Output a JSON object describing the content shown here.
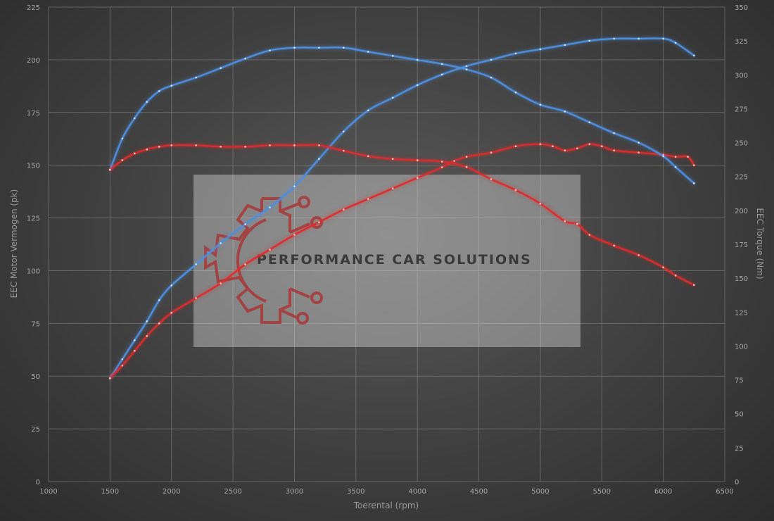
{
  "chart_data": {
    "type": "line",
    "xlabel": "Toerental (rpm)",
    "ylabel": "EEC Motor Vermogen (pk)",
    "y2label": "EEC Torque (Nm)",
    "xlim": [
      1000,
      6500
    ],
    "ylim": [
      0,
      225
    ],
    "y2lim": [
      0,
      350
    ],
    "xticks": [
      1000,
      1500,
      2000,
      2500,
      3000,
      3500,
      4000,
      4500,
      5000,
      5500,
      6000,
      6500
    ],
    "yticks": [
      0,
      25,
      50,
      75,
      100,
      125,
      150,
      175,
      200,
      225
    ],
    "y2ticks": [
      0,
      25,
      50,
      75,
      100,
      125,
      150,
      175,
      200,
      225,
      250,
      275,
      300,
      325,
      350
    ],
    "grid": true,
    "series": [
      {
        "axis": "left",
        "color": "#4d8fe0",
        "x": [
          1500,
          1600,
          1700,
          1800,
          1900,
          2000,
          2200,
          2400,
          2600,
          2800,
          3000,
          3200,
          3400,
          3600,
          3800,
          4000,
          4200,
          4400,
          4600,
          4800,
          5000,
          5200,
          5400,
          5600,
          5800,
          6000,
          6100,
          6250
        ],
        "y": [
          49,
          58,
          67,
          76,
          86,
          93,
          103,
          113,
          122,
          130,
          140,
          153,
          166,
          176,
          182,
          188,
          193,
          197,
          200,
          203,
          205,
          207,
          209,
          210,
          210,
          210,
          208,
          202
        ]
      },
      {
        "axis": "left",
        "color": "#e02a2a",
        "x": [
          1500,
          1600,
          1700,
          1800,
          1900,
          2000,
          2200,
          2400,
          2600,
          2800,
          3000,
          3200,
          3400,
          3600,
          3800,
          4000,
          4200,
          4300,
          4400,
          4600,
          4800,
          5000,
          5100,
          5200,
          5300,
          5400,
          5500,
          5600,
          5800,
          6000,
          6100,
          6200,
          6250
        ],
        "y": [
          49,
          55,
          62,
          69,
          75,
          80,
          87,
          94,
          103,
          110,
          117,
          123,
          129,
          134,
          139,
          144,
          149,
          152,
          154,
          156,
          159,
          160,
          159,
          157,
          158,
          160,
          159,
          157,
          156,
          155,
          154,
          154,
          150
        ]
      },
      {
        "axis": "right",
        "color": "#4d8fe0",
        "x": [
          1500,
          1600,
          1700,
          1800,
          1900,
          2000,
          2200,
          2400,
          2600,
          2800,
          3000,
          3200,
          3400,
          3600,
          3800,
          4000,
          4200,
          4400,
          4600,
          4800,
          5000,
          5200,
          5400,
          5600,
          5800,
          6000,
          6100,
          6250
        ],
        "y": [
          230,
          253,
          268,
          280,
          288,
          292,
          298,
          305,
          312,
          318,
          320,
          320,
          320,
          317,
          314,
          311,
          308,
          304,
          298,
          287,
          278,
          273,
          265,
          257,
          250,
          240,
          232,
          220
        ]
      },
      {
        "axis": "right",
        "color": "#e02a2a",
        "x": [
          1500,
          1600,
          1700,
          1800,
          1900,
          2000,
          2200,
          2400,
          2600,
          2800,
          3000,
          3200,
          3400,
          3600,
          3800,
          4000,
          4200,
          4400,
          4600,
          4800,
          5000,
          5200,
          5300,
          5400,
          5600,
          5800,
          6000,
          6100,
          6250
        ],
        "y": [
          230,
          237,
          242,
          245,
          247,
          248,
          248,
          247,
          247,
          248,
          248,
          248,
          244,
          240,
          238,
          237,
          236,
          232,
          223,
          215,
          205,
          192,
          190,
          182,
          174,
          167,
          158,
          152,
          145
        ]
      }
    ],
    "watermark": "PERFORMANCE CAR SOLUTIONS"
  }
}
